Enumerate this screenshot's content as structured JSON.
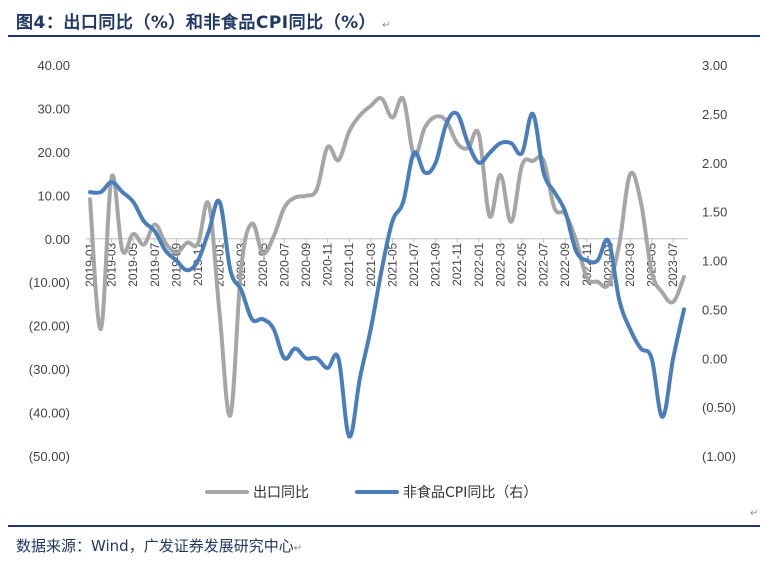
{
  "header": {
    "title": "图4：出口同比（%）和非食品CPI同比（%）",
    "mark": "↵"
  },
  "footer": {
    "source": "数据来源：Wind，广发证券发展研究中心",
    "mark": "↵",
    "corner_mark": "↵"
  },
  "chart_data": {
    "type": "line",
    "title": "",
    "y_left": {
      "range": [
        -50,
        40
      ],
      "ticks": [
        40,
        30,
        20,
        10,
        0,
        -10,
        -20,
        -30,
        -40,
        -50
      ],
      "tick_labels": [
        "40.00",
        "30.00",
        "20.00",
        "10.00",
        "0.00",
        "(10.00)",
        "(20.00)",
        "(30.00)",
        "(40.00)",
        "(50.00)"
      ]
    },
    "y_right": {
      "range": [
        -1.0,
        3.0
      ],
      "ticks": [
        3.0,
        2.5,
        2.0,
        1.5,
        1.0,
        0.5,
        0.0,
        -0.5,
        -1.0
      ],
      "tick_labels": [
        "3.00",
        "2.50",
        "2.00",
        "1.50",
        "1.00",
        "0.50",
        "0.00",
        "(0.50)",
        "(1.00)"
      ]
    },
    "x_tick_labels": [
      "2019-01",
      "2019-03",
      "2019-05",
      "2019-07",
      "2019-09",
      "2019-11",
      "2020-01",
      "2020-03",
      "2020-05",
      "2020-07",
      "2020-09",
      "2020-11",
      "2021-01",
      "2021-03",
      "2021-05",
      "2021-07",
      "2021-09",
      "2021-11",
      "2022-01",
      "2022-03",
      "2022-05",
      "2022-07",
      "2022-09",
      "2022-11",
      "2023-01",
      "2023-03",
      "2023-05",
      "2023-07"
    ],
    "x": [
      "2019-01",
      "2019-02",
      "2019-03",
      "2019-04",
      "2019-05",
      "2019-06",
      "2019-07",
      "2019-08",
      "2019-09",
      "2019-10",
      "2019-11",
      "2019-12",
      "2020-01",
      "2020-02",
      "2020-03",
      "2020-04",
      "2020-05",
      "2020-06",
      "2020-07",
      "2020-08",
      "2020-09",
      "2020-10",
      "2020-11",
      "2020-12",
      "2021-01",
      "2021-02",
      "2021-03",
      "2021-04",
      "2021-05",
      "2021-06",
      "2021-07",
      "2021-08",
      "2021-09",
      "2021-10",
      "2021-11",
      "2021-12",
      "2022-01",
      "2022-02",
      "2022-03",
      "2022-04",
      "2022-05",
      "2022-06",
      "2022-07",
      "2022-08",
      "2022-09",
      "2022-10",
      "2022-11",
      "2022-12",
      "2023-01",
      "2023-02",
      "2023-03",
      "2023-04",
      "2023-05",
      "2023-06",
      "2023-07",
      "2023-08"
    ],
    "series": [
      {
        "name": "出口同比",
        "axis": "left",
        "color": "#a6a6a6",
        "values": [
          9.1,
          -20.8,
          14.2,
          -2.7,
          1.1,
          -1.3,
          3.3,
          -1.0,
          -3.2,
          -0.9,
          -1.1,
          7.9,
          -17.2,
          -40.6,
          -6.6,
          3.5,
          -3.3,
          0.5,
          7.2,
          9.5,
          9.9,
          11.4,
          21.1,
          18.1,
          24.7,
          28.4,
          30.6,
          32.3,
          27.9,
          32.2,
          19.3,
          25.6,
          28.1,
          27.1,
          22.0,
          20.9,
          24.1,
          5.2,
          14.7,
          3.9,
          16.9,
          17.9,
          18.0,
          7.1,
          5.7,
          -0.3,
          -8.9,
          -9.9,
          -10.5,
          -1.3,
          14.8,
          8.5,
          -7.5,
          -12.4,
          -14.5,
          -8.8
        ]
      },
      {
        "name": "非食品CPI同比（右）",
        "axis": "right",
        "color": "#4a7ebb",
        "values": [
          1.7,
          1.7,
          1.8,
          1.7,
          1.6,
          1.4,
          1.3,
          1.1,
          1.0,
          0.9,
          1.0,
          1.3,
          1.6,
          0.9,
          0.7,
          0.4,
          0.4,
          0.3,
          0.0,
          0.1,
          0.0,
          0.0,
          -0.1,
          0.0,
          -0.8,
          -0.2,
          0.3,
          0.9,
          1.4,
          1.6,
          2.1,
          1.9,
          2.0,
          2.4,
          2.5,
          2.2,
          2.0,
          2.1,
          2.2,
          2.2,
          2.1,
          2.5,
          1.9,
          1.7,
          1.5,
          1.1,
          1.0,
          1.0,
          1.2,
          0.6,
          0.3,
          0.1,
          0.0,
          -0.6,
          0.0,
          0.5
        ]
      }
    ],
    "legend": {
      "position": "bottom"
    }
  }
}
